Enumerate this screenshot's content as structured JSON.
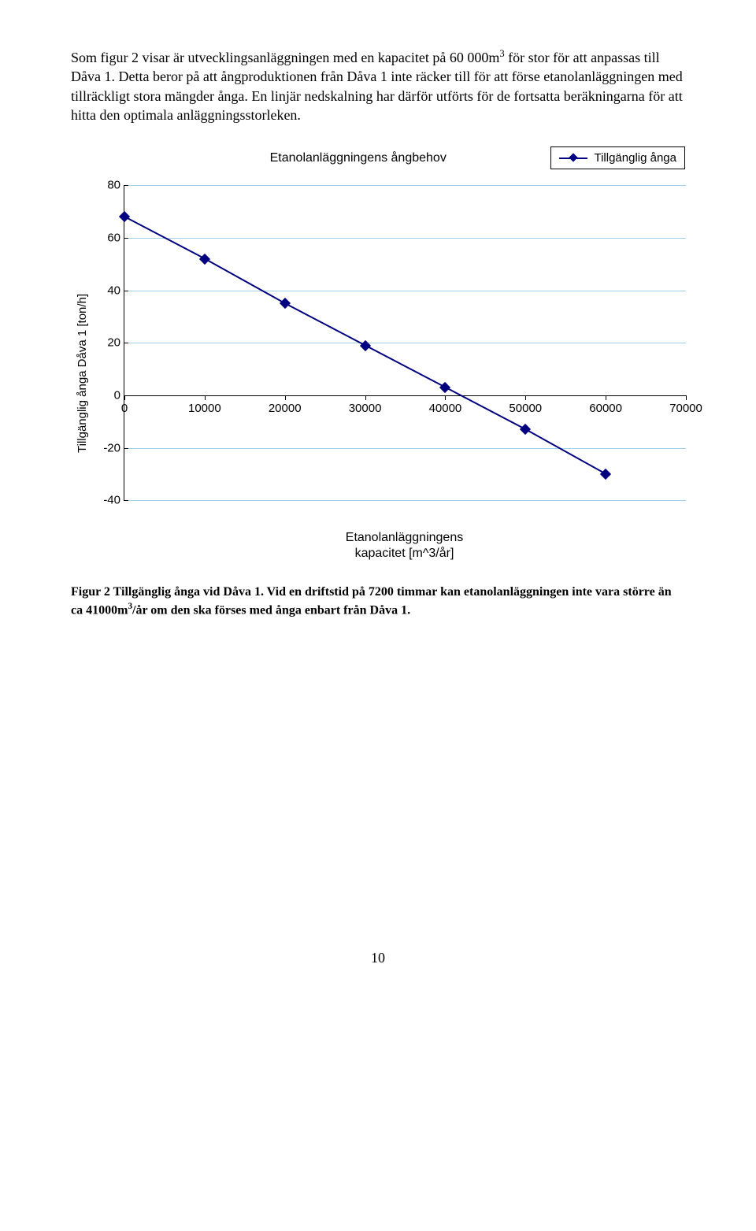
{
  "text": {
    "para_html": "Som figur 2 visar är utvecklingsanläggningen med en kapacitet på 60 000m<sup>3</sup> för stor för att anpassas till Dåva 1. Detta beror på att ångproduktionen från Dåva 1 inte räcker till för att förse etanolanläggningen med tillräckligt stora mängder ånga. En linjär nedskalning har därför utförts för de fortsatta beräkningarna för att hitta den optimala anläggningsstorleken.",
    "figure_caption_html": "Figur 2 Tillgänglig ånga vid Dåva 1. Vid en driftstid på 7200 timmar kan etanolanläggningen inte vara större än ca 41000m<sup>3</sup>/år om den ska förses med ånga enbart från Dåva 1.",
    "page_number": "10"
  },
  "chart": {
    "type": "line-scatter",
    "title": "Etanolanläggningens ångbehov",
    "legend_label": "Tillgänglig ånga",
    "y_axis_label": "Tillgänglig ånga Dåva 1 [ton/h]",
    "x_axis_label_lines": [
      "Etanolanläggningens",
      "kapacitet [m^3/år]"
    ],
    "y_min": -40,
    "y_max": 80,
    "y_tick_step": 20,
    "y_ticks": [
      -40,
      -20,
      0,
      20,
      40,
      60,
      80
    ],
    "x_min": 0,
    "x_max": 70000,
    "x_tick_step": 10000,
    "x_ticks": [
      0,
      10000,
      20000,
      30000,
      40000,
      50000,
      60000,
      70000
    ],
    "grid_color": "#a0d0e8",
    "axis_color": "#000000",
    "background_color": "#ffffff",
    "series": {
      "color": "#000080",
      "marker_fill": "#000080",
      "marker_shape": "diamond",
      "marker_size": 10,
      "line_width": 2,
      "points": [
        {
          "x": 0,
          "y": 68
        },
        {
          "x": 10000,
          "y": 52
        },
        {
          "x": 20000,
          "y": 35
        },
        {
          "x": 30000,
          "y": 19
        },
        {
          "x": 40000,
          "y": 3
        },
        {
          "x": 50000,
          "y": -13
        },
        {
          "x": 60000,
          "y": -30
        }
      ]
    }
  }
}
